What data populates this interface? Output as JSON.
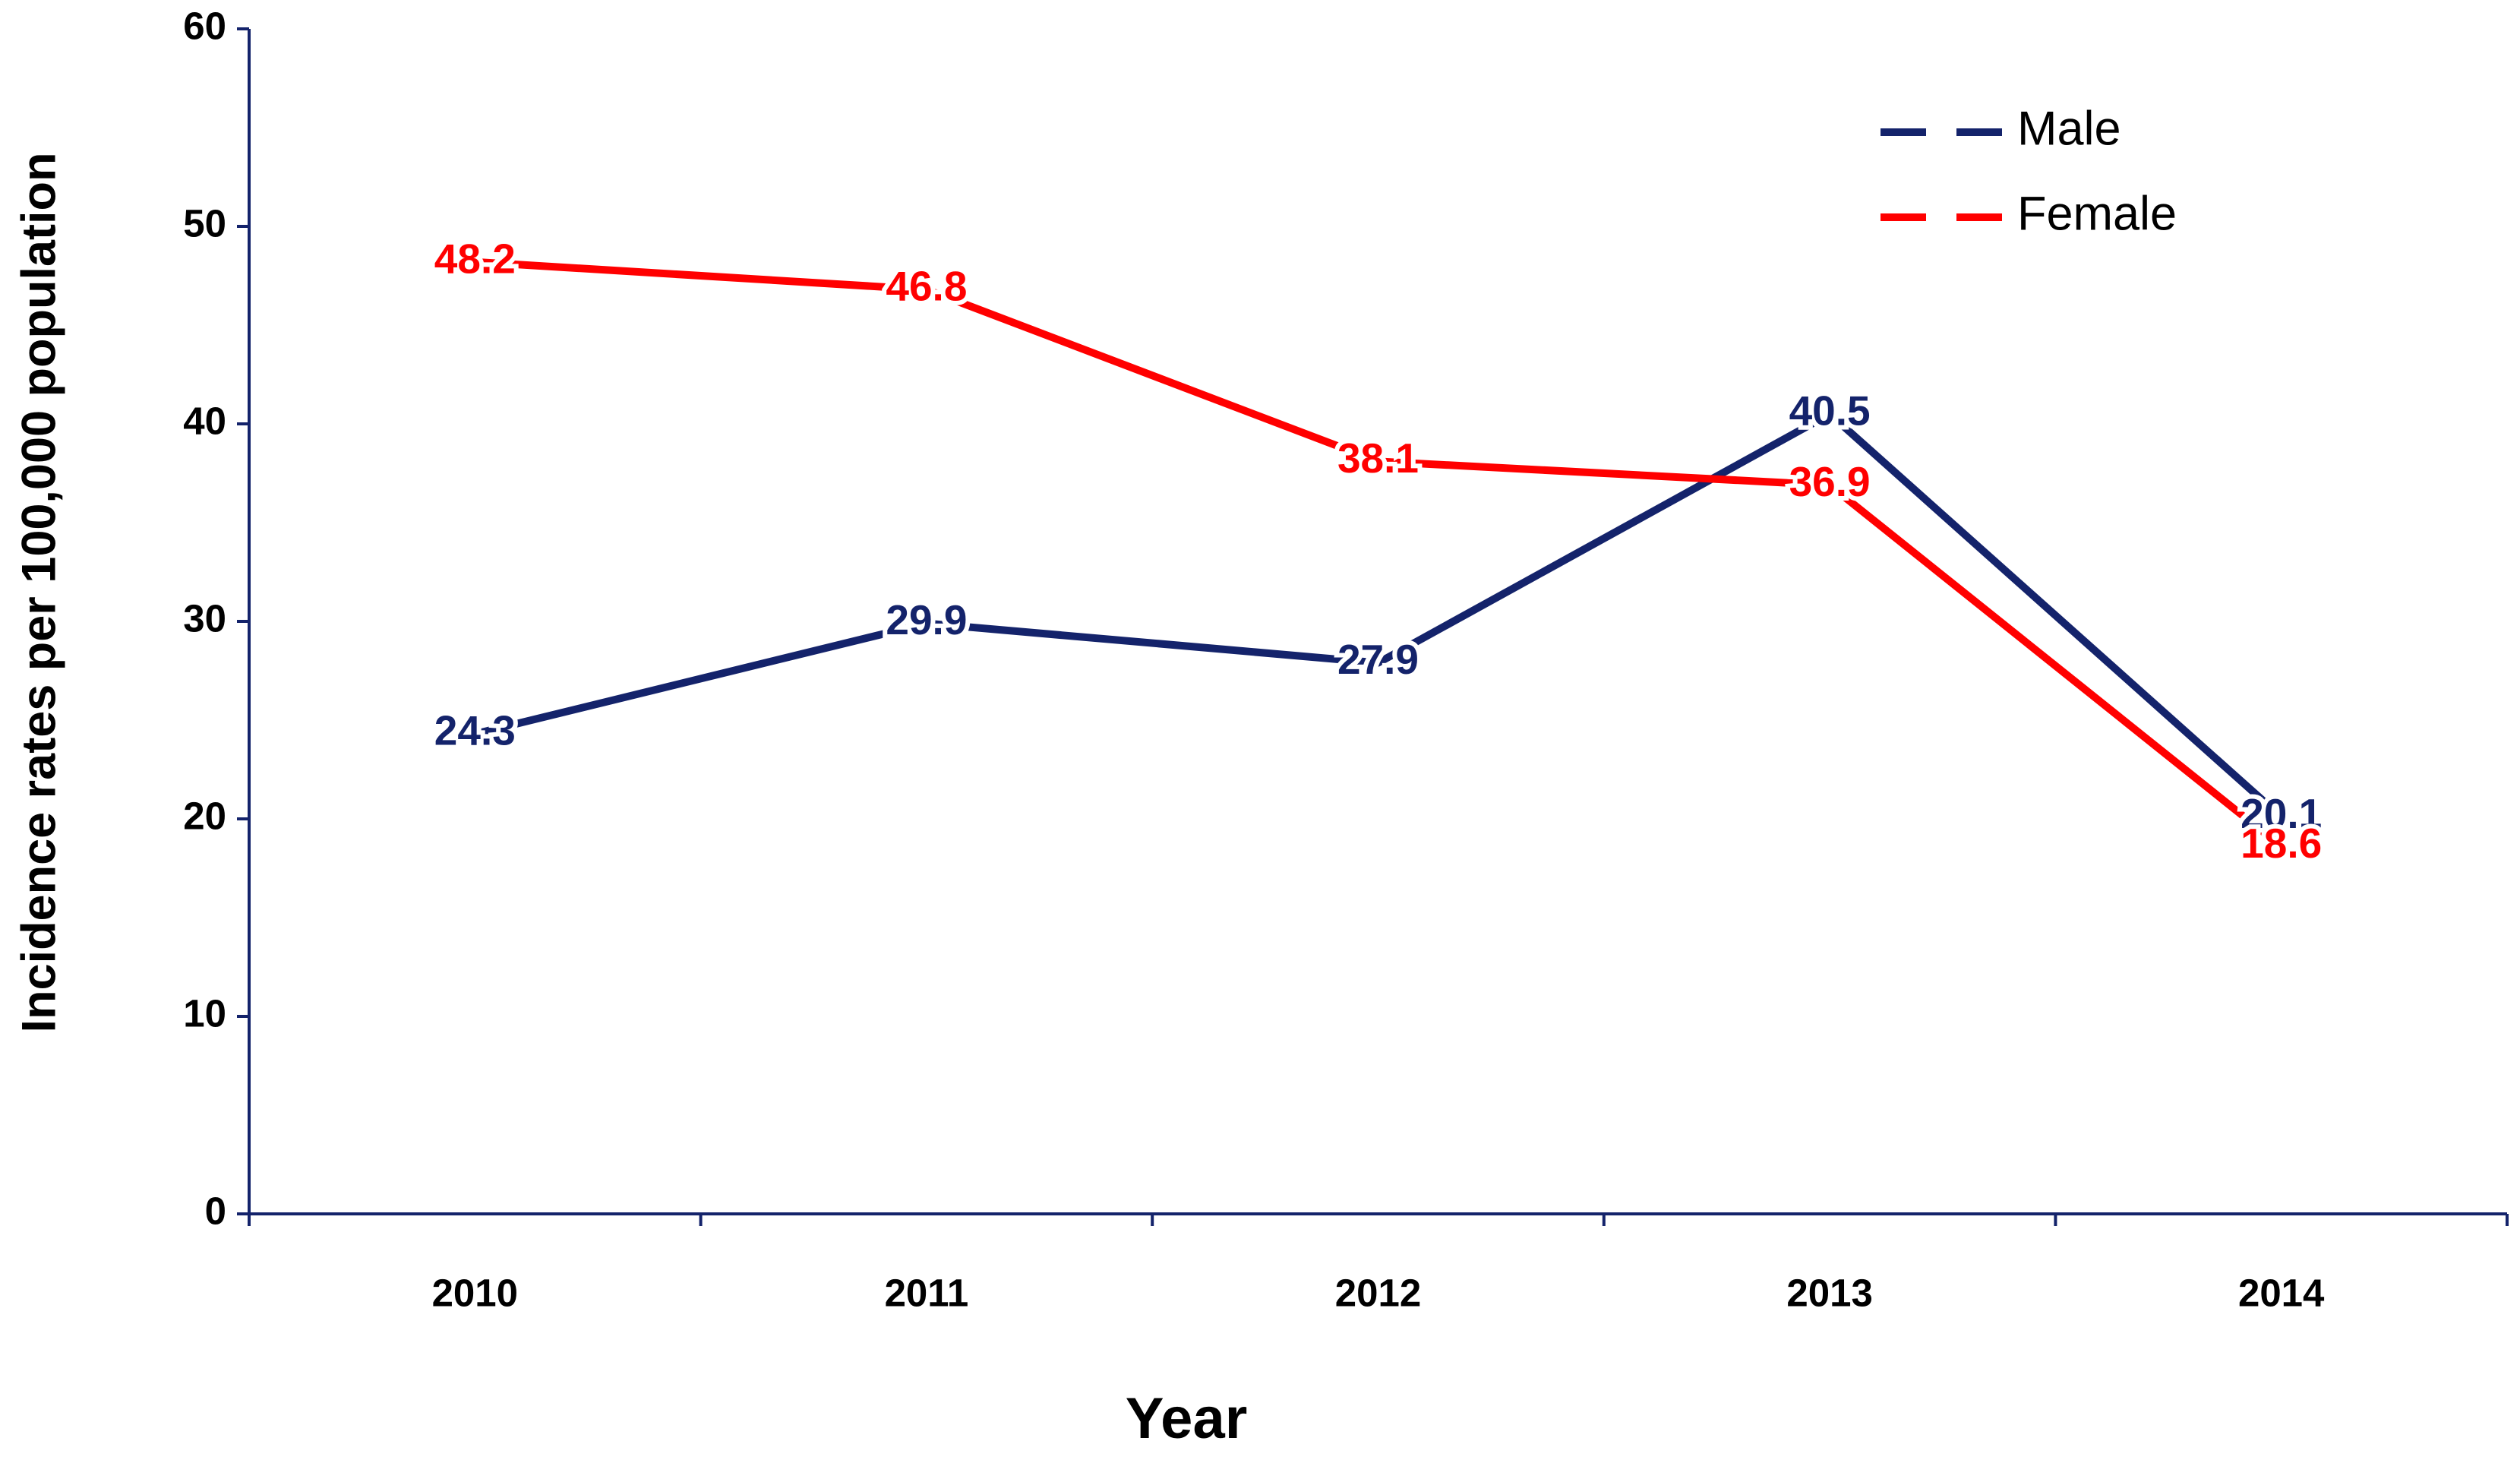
{
  "chart_data": {
    "type": "line",
    "x_label": "Year",
    "y_label": "Incidence rates per 100,000 population",
    "categories": [
      "2010",
      "2011",
      "2012",
      "2013",
      "2014"
    ],
    "series": [
      {
        "name": "Male",
        "color": "#14236b",
        "values": [
          24.3,
          29.9,
          27.9,
          40.5,
          20.1
        ]
      },
      {
        "name": "Female",
        "color": "#ff0000",
        "values": [
          48.2,
          46.8,
          38.1,
          36.9,
          18.6
        ]
      }
    ],
    "ylim": [
      0,
      60
    ],
    "yticks": [
      0,
      10,
      20,
      30,
      40,
      50,
      60
    ],
    "grid": false,
    "legend": "upper right",
    "data_labels": true
  }
}
